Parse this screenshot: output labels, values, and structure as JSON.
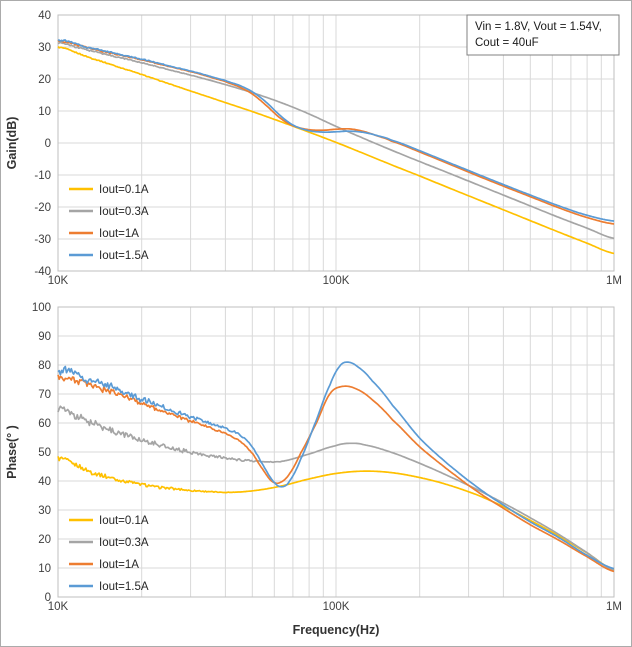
{
  "figure": {
    "background": "#FFFFFF"
  },
  "styles": {
    "grid_color": "#D9D9D9",
    "plot_border_color": "#BFBFBF",
    "tick_text_color": "#404040",
    "axis_title_color": "#333333",
    "legend_text_color": "#262626",
    "annotation_border_color": "#808080",
    "annotation_text_color": "#1a1a1a"
  },
  "chart_data": [
    {
      "type": "line",
      "title": "",
      "xlabel": "",
      "ylabel": "Gain(dB)",
      "x_scale": "log",
      "xlim": [
        10000,
        1000000
      ],
      "ylim": [
        -40,
        40
      ],
      "grid": true,
      "legend_position": "inside-left",
      "y_ticks": [
        40,
        30,
        20,
        10,
        0,
        -10,
        -20,
        -30,
        -40
      ],
      "x_ticks": [
        {
          "value": 10000,
          "label": "10K"
        },
        {
          "value": 100000,
          "label": "100K"
        },
        {
          "value": 1000000,
          "label": "1M"
        }
      ],
      "annotation_lines": [
        "Vin = 1.8V, Vout = 1.54V,",
        "Cout = 40uF"
      ],
      "series": [
        {
          "name": "Iout=0.1A",
          "color": "#FFC000",
          "noise": {
            "amp": 0.35,
            "fade_hz": 40000
          },
          "points": [
            [
              10000,
              30
            ],
            [
              12600,
              27.1
            ],
            [
              15800,
              24.3
            ],
            [
              20000,
              21.4
            ],
            [
              25100,
              18.5
            ],
            [
              31600,
              15.6
            ],
            [
              39800,
              12.7
            ],
            [
              50100,
              9.8
            ],
            [
              63100,
              6.7
            ],
            [
              79400,
              3.5
            ],
            [
              100000,
              0.2
            ],
            [
              126000,
              -3.3
            ],
            [
              158000,
              -6.8
            ],
            [
              200000,
              -10.3
            ],
            [
              251000,
              -13.8
            ],
            [
              316000,
              -17.3
            ],
            [
              398000,
              -20.8
            ],
            [
              501000,
              -24.3
            ],
            [
              631000,
              -27.8
            ],
            [
              794000,
              -31.2
            ],
            [
              1000000,
              -34.5
            ]
          ]
        },
        {
          "name": "Iout=0.3A",
          "color": "#A5A5A5",
          "noise": {
            "amp": 0.5,
            "fade_hz": 40000
          },
          "points": [
            [
              10000,
              31.3
            ],
            [
              12600,
              29.2
            ],
            [
              15800,
              27.2
            ],
            [
              20000,
              25.1
            ],
            [
              25100,
              22.9
            ],
            [
              31600,
              20.7
            ],
            [
              39800,
              18.3
            ],
            [
              50100,
              15.7
            ],
            [
              63100,
              12.7
            ],
            [
              79400,
              9.2
            ],
            [
              100000,
              5.2
            ],
            [
              126000,
              1.4
            ],
            [
              158000,
              -2.2
            ],
            [
              200000,
              -5.8
            ],
            [
              251000,
              -9.2
            ],
            [
              316000,
              -12.7
            ],
            [
              398000,
              -16.2
            ],
            [
              501000,
              -19.7
            ],
            [
              631000,
              -23.2
            ],
            [
              794000,
              -26.5
            ],
            [
              1000000,
              -29.8
            ]
          ]
        },
        {
          "name": "Iout=1A",
          "color": "#ED7D31",
          "noise": {
            "amp": 0.5,
            "fade_hz": 40000
          },
          "points": [
            [
              10000,
              32
            ],
            [
              12600,
              29.9
            ],
            [
              15800,
              27.9
            ],
            [
              20000,
              26
            ],
            [
              25100,
              23.9
            ],
            [
              31600,
              21.8
            ],
            [
              39800,
              19.3
            ],
            [
              45000,
              17.5
            ],
            [
              50000,
              15.3
            ],
            [
              56000,
              11.8
            ],
            [
              63000,
              7.8
            ],
            [
              70000,
              5.4
            ],
            [
              79400,
              4.2
            ],
            [
              90000,
              4.0
            ],
            [
              100000,
              4.3
            ],
            [
              112000,
              4.4
            ],
            [
              126000,
              3.6
            ],
            [
              141000,
              2.2
            ],
            [
              158000,
              0.6
            ],
            [
              200000,
              -2.8
            ],
            [
              251000,
              -6.3
            ],
            [
              316000,
              -9.9
            ],
            [
              398000,
              -13.4
            ],
            [
              501000,
              -16.8
            ],
            [
              631000,
              -20.2
            ],
            [
              794000,
              -23.2
            ],
            [
              1000000,
              -25.3
            ]
          ]
        },
        {
          "name": "Iout=1.5A",
          "color": "#5B9BD5",
          "noise": {
            "amp": 0.55,
            "fade_hz": 40000
          },
          "points": [
            [
              10000,
              32.3
            ],
            [
              12600,
              30.1
            ],
            [
              15800,
              28.1
            ],
            [
              20000,
              26.2
            ],
            [
              25100,
              24.1
            ],
            [
              31600,
              22
            ],
            [
              39800,
              19.6
            ],
            [
              45000,
              18
            ],
            [
              50000,
              16
            ],
            [
              56000,
              12.8
            ],
            [
              63000,
              8.6
            ],
            [
              70000,
              5.6
            ],
            [
              79400,
              3.9
            ],
            [
              90000,
              3.4
            ],
            [
              100000,
              3.5
            ],
            [
              112000,
              3.7
            ],
            [
              126000,
              3.3
            ],
            [
              141000,
              2.3
            ],
            [
              158000,
              0.9
            ],
            [
              200000,
              -2.4
            ],
            [
              251000,
              -5.9
            ],
            [
              316000,
              -9.4
            ],
            [
              398000,
              -12.9
            ],
            [
              501000,
              -16.3
            ],
            [
              631000,
              -19.6
            ],
            [
              794000,
              -22.5
            ],
            [
              1000000,
              -24.4
            ]
          ]
        }
      ]
    },
    {
      "type": "line",
      "title": "",
      "xlabel": "Frequency(Hz)",
      "ylabel": "Phase(° )",
      "x_scale": "log",
      "xlim": [
        10000,
        1000000
      ],
      "ylim": [
        0,
        100
      ],
      "grid": true,
      "legend_position": "inside-bottom-left",
      "y_ticks": [
        100,
        90,
        80,
        70,
        60,
        50,
        40,
        30,
        20,
        10,
        0
      ],
      "x_ticks": [
        {
          "value": 10000,
          "label": "10K"
        },
        {
          "value": 100000,
          "label": "100K"
        },
        {
          "value": 1000000,
          "label": "1M"
        }
      ],
      "series": [
        {
          "name": "Iout=0.1A",
          "color": "#FFC000",
          "noise": {
            "amp": 1.5,
            "fade_hz": 50000
          },
          "points": [
            [
              10000,
              48
            ],
            [
              12600,
              43.8
            ],
            [
              15800,
              40.9
            ],
            [
              20000,
              38.8
            ],
            [
              25000,
              37.5
            ],
            [
              32000,
              36.6
            ],
            [
              40000,
              36.1
            ],
            [
              50000,
              36.6
            ],
            [
              63000,
              38.2
            ],
            [
              80000,
              40.7
            ],
            [
              100000,
              42.6
            ],
            [
              126000,
              43.4
            ],
            [
              158000,
              42.9
            ],
            [
              200000,
              41.2
            ],
            [
              250000,
              38.8
            ],
            [
              320000,
              35.3
            ],
            [
              400000,
              31.2
            ],
            [
              500000,
              26.4
            ],
            [
              630000,
              21.1
            ],
            [
              800000,
              15.2
            ],
            [
              1000000,
              9.4
            ]
          ]
        },
        {
          "name": "Iout=0.3A",
          "color": "#A5A5A5",
          "noise": {
            "amp": 2.4,
            "fade_hz": 70000
          },
          "points": [
            [
              10000,
              65
            ],
            [
              12600,
              60.8
            ],
            [
              15800,
              57.4
            ],
            [
              20000,
              54.2
            ],
            [
              25000,
              51.6
            ],
            [
              32000,
              49.4
            ],
            [
              40000,
              47.9
            ],
            [
              50000,
              46.9
            ],
            [
              63000,
              46.7
            ],
            [
              80000,
              49.3
            ],
            [
              100000,
              52.2
            ],
            [
              112000,
              53
            ],
            [
              126000,
              52.5
            ],
            [
              158000,
              49.9
            ],
            [
              200000,
              46.1
            ],
            [
              250000,
              42
            ],
            [
              320000,
              37.2
            ],
            [
              400000,
              32.4
            ],
            [
              500000,
              27.3
            ],
            [
              630000,
              21.7
            ],
            [
              800000,
              15.3
            ],
            [
              1000000,
              9.2
            ]
          ]
        },
        {
          "name": "Iout=1A",
          "color": "#ED7D31",
          "noise": {
            "amp": 2.1,
            "fade_hz": 60000
          },
          "points": [
            [
              10000,
              76
            ],
            [
              12600,
              73.5
            ],
            [
              15800,
              70.6
            ],
            [
              20000,
              66.8
            ],
            [
              25000,
              63.2
            ],
            [
              32000,
              59.8
            ],
            [
              40000,
              56.5
            ],
            [
              45000,
              53.8
            ],
            [
              50000,
              49.5
            ],
            [
              55000,
              43.5
            ],
            [
              59000,
              39.8
            ],
            [
              63000,
              39.5
            ],
            [
              68000,
              42.5
            ],
            [
              75000,
              50
            ],
            [
              85000,
              60
            ],
            [
              95000,
              70
            ],
            [
              105000,
              72.6
            ],
            [
              118000,
              71.8
            ],
            [
              135000,
              68
            ],
            [
              160000,
              61
            ],
            [
              200000,
              51.8
            ],
            [
              250000,
              44.2
            ],
            [
              320000,
              36.6
            ],
            [
              400000,
              30.6
            ],
            [
              500000,
              24.9
            ],
            [
              630000,
              19.7
            ],
            [
              800000,
              13.9
            ],
            [
              1000000,
              8.8
            ]
          ]
        },
        {
          "name": "Iout=1.5A",
          "color": "#5B9BD5",
          "noise": {
            "amp": 2.7,
            "fade_hz": 60000
          },
          "points": [
            [
              10000,
              78.5
            ],
            [
              12600,
              75.5
            ],
            [
              15800,
              72
            ],
            [
              20000,
              68.2
            ],
            [
              25000,
              64.6
            ],
            [
              32000,
              61.3
            ],
            [
              40000,
              58.2
            ],
            [
              45000,
              56
            ],
            [
              50000,
              51.8
            ],
            [
              55000,
              45
            ],
            [
              60000,
              39.5
            ],
            [
              64000,
              38
            ],
            [
              68000,
              40
            ],
            [
              75000,
              48
            ],
            [
              85000,
              61
            ],
            [
              95000,
              73
            ],
            [
              103000,
              79.5
            ],
            [
              110000,
              81
            ],
            [
              120000,
              79.3
            ],
            [
              135000,
              74.5
            ],
            [
              160000,
              66
            ],
            [
              200000,
              54.8
            ],
            [
              250000,
              46.2
            ],
            [
              320000,
              38.1
            ],
            [
              400000,
              31.7
            ],
            [
              500000,
              25.9
            ],
            [
              630000,
              20.6
            ],
            [
              800000,
              14.4
            ],
            [
              1000000,
              9.8
            ]
          ]
        }
      ]
    }
  ]
}
